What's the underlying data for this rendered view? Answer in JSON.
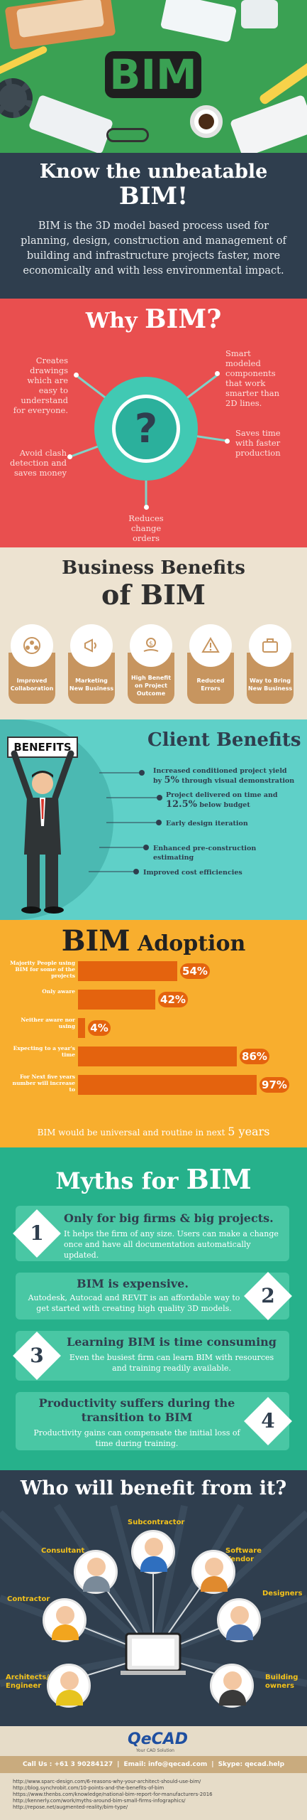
{
  "hero": {
    "title": "BIM"
  },
  "intro": {
    "heading_line1": "Know the unbeatable",
    "heading_line2": "BIM!",
    "paragraph": "BIM is the 3D model based process used for planning, design, construction and management of building and infrastructure projects faster, more economically and with less environmental impact."
  },
  "why": {
    "heading_small": "Why ",
    "heading_big": "BIM?",
    "center_symbol": "?",
    "points": [
      "Creates drawings which are easy to understand for everyone.",
      "Smart modeled components that work smarter than 2D lines.",
      "Saves time with faster production",
      "Avoid clash detection and saves money",
      "Reduces change orders"
    ]
  },
  "business": {
    "heading_line1": "Business Benefits",
    "heading_line2": "of BIM",
    "items": [
      {
        "label": "Improved Collaboration",
        "icon": "collaboration-icon"
      },
      {
        "label": "Marketing New Business",
        "icon": "megaphone-icon"
      },
      {
        "label": "High Benefit on Project Outcome",
        "icon": "money-hand-icon"
      },
      {
        "label": "Reduced Errors",
        "icon": "warning-icon"
      },
      {
        "label": "Way to Bring New Business",
        "icon": "briefcase-icon"
      }
    ]
  },
  "client": {
    "sign": "BENEFITS",
    "heading": "Client Benefits",
    "items": [
      {
        "pre": "Increased conditioned project yield by",
        "big": "5%",
        "post": "through visual demonstration"
      },
      {
        "pre": "Project delivered on time and",
        "big": "12.5%",
        "post": "below budget"
      },
      {
        "pre": "Early design iteration",
        "big": "",
        "post": ""
      },
      {
        "pre": "Enhanced pre-construction estimating",
        "big": "",
        "post": ""
      },
      {
        "pre": "Improved cost efficiencies",
        "big": "",
        "post": ""
      }
    ]
  },
  "adoption": {
    "heading_big": "BIM",
    "heading_small": " Adoption",
    "footer_pre": "BIM would be universal and routine in next",
    "footer_big": "5 years"
  },
  "chart_data": {
    "type": "bar",
    "orientation": "horizontal",
    "categories": [
      "Majority People using BIM for some of the projects",
      "Only aware",
      "Neither aware nor using",
      "Expecting to a year's time",
      "For Next five years number will increase to"
    ],
    "values": [
      54,
      42,
      4,
      86,
      97
    ],
    "value_labels": [
      "54%",
      "42%",
      "4%",
      "86%",
      "97%"
    ],
    "color": "#e4630e"
  },
  "myths": {
    "heading_small": "Myths for ",
    "heading_big": "BIM",
    "items": [
      {
        "num": "1",
        "title": "Only for big firms & big projects.",
        "body": "It helps the firm of any size. Users can make a change once and have all documentation automatically updated."
      },
      {
        "num": "2",
        "title": "BIM is expensive.",
        "body": "Autodesk, Autocad and REVIT is an affordable way to get started with creating high quality 3D models."
      },
      {
        "num": "3",
        "title": "Learning BIM is time consuming",
        "body": "Even the busiest firm can learn BIM with resources and training readily available."
      },
      {
        "num": "4",
        "title": "Productivity suffers during the transition to BIM",
        "body": "Productivity gains can compensate the initial loss of time during training."
      }
    ]
  },
  "who": {
    "heading": "Who will benefit from it?",
    "roles": [
      "Subcontractor",
      "Consultant",
      "Software Vendor",
      "Contractor",
      "Designers",
      "Architects/ Engineer",
      "Building owners"
    ]
  },
  "footer": {
    "logo": "QeCAD",
    "logo_sub": "Your CAD Solution",
    "call": "Call Us : +61 3 90284127",
    "email": "Email: info@qecad.com",
    "skype": "Skype: qecad.help",
    "sep": "|",
    "links": [
      "http://www.sparc-design.com/6-reasons-why-your-architect-should-use-bim/",
      "http://blog.synchrobit.com/10-points-and-the-benefits-of-bim",
      "https://www.thenbs.com/knowledge/national-bim-report-for-manufacturers-2016",
      "http://kennerly.com/work/myths-around-bim-small-firms-infographics/",
      "http://repose.net/augmented-reality/bim-type/"
    ]
  },
  "colors": {
    "hero_green": "#3aa153",
    "intro_navy": "#2f3e4e",
    "why_red": "#e94f4f",
    "teal": "#41c9b3",
    "beige": "#ede3d1",
    "tan": "#c7955f",
    "client_cyan": "#5fd0c8",
    "adoption_orange": "#f8ae2e",
    "bar_orange": "#e4630e",
    "myths_green": "#26b18b",
    "who_navy": "#2f3e4e",
    "gold": "#f4c21a"
  }
}
